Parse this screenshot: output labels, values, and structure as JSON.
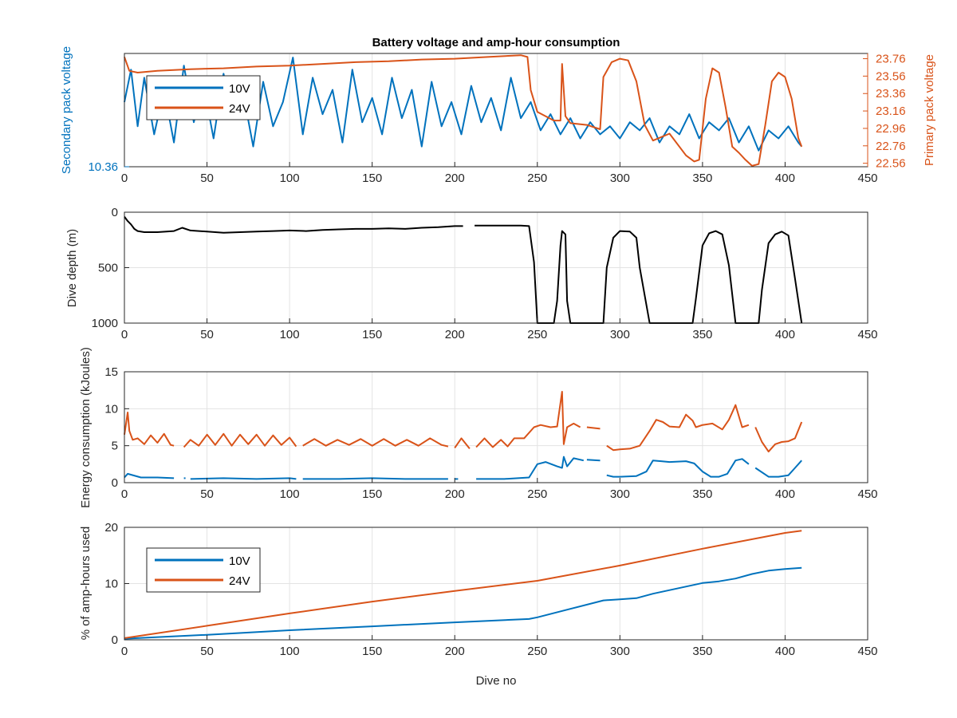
{
  "chart_data": [
    {
      "type": "line",
      "title": "Battery voltage and amp-hour consumption",
      "xlim": [
        0,
        450
      ],
      "xticks": [
        "0",
        "50",
        "100",
        "150",
        "200",
        "250",
        "300",
        "350",
        "400",
        "450"
      ],
      "ylabel_left": "Secondary pack voltage",
      "ylabel_right": "Primary pack voltage",
      "left_tick_labels": [
        "10.36"
      ],
      "right_tick_labels": [
        "23.76",
        "23.56",
        "23.36",
        "23.16",
        "22.96",
        "22.76",
        "22.56"
      ],
      "ylim_left": [
        10.36,
        10.64
      ],
      "ylim_right": [
        22.52,
        23.82
      ],
      "grid": true,
      "legend": {
        "placement": "top-left",
        "entries": [
          "10V",
          "24V"
        ]
      },
      "colors": {
        "s10": "#0072BD",
        "s24": "#D95319"
      },
      "series": [
        {
          "name": "10V",
          "axis": "left",
          "x": [
            0,
            4,
            8,
            12,
            18,
            24,
            30,
            36,
            42,
            48,
            54,
            60,
            66,
            72,
            78,
            84,
            90,
            96,
            102,
            108,
            114,
            120,
            126,
            132,
            138,
            144,
            150,
            156,
            162,
            168,
            174,
            180,
            186,
            192,
            198,
            204,
            210,
            216,
            222,
            228,
            234,
            240,
            246,
            252,
            258,
            264,
            270,
            276,
            282,
            288,
            294,
            300,
            306,
            312,
            318,
            324,
            330,
            336,
            342,
            348,
            354,
            360,
            366,
            372,
            378,
            384,
            390,
            396,
            402,
            408,
            410
          ],
          "y": [
            10.52,
            10.6,
            10.46,
            10.58,
            10.44,
            10.55,
            10.42,
            10.61,
            10.47,
            10.56,
            10.43,
            10.59,
            10.48,
            10.54,
            10.41,
            10.57,
            10.46,
            10.52,
            10.63,
            10.44,
            10.58,
            10.49,
            10.55,
            10.42,
            10.6,
            10.47,
            10.53,
            10.44,
            10.58,
            10.48,
            10.55,
            10.41,
            10.57,
            10.46,
            10.52,
            10.44,
            10.56,
            10.47,
            10.53,
            10.45,
            10.58,
            10.48,
            10.52,
            10.45,
            10.49,
            10.44,
            10.48,
            10.43,
            10.47,
            10.44,
            10.46,
            10.43,
            10.47,
            10.45,
            10.48,
            10.42,
            10.46,
            10.44,
            10.49,
            10.43,
            10.47,
            10.45,
            10.48,
            10.42,
            10.46,
            10.4,
            10.45,
            10.43,
            10.46,
            10.42,
            10.41
          ]
        },
        {
          "name": "24V",
          "axis": "right",
          "x": [
            0,
            3,
            8,
            20,
            40,
            60,
            80,
            100,
            120,
            140,
            160,
            180,
            200,
            220,
            240,
            244,
            246,
            250,
            260,
            264,
            265,
            267,
            270,
            280,
            288,
            290,
            295,
            300,
            305,
            310,
            315,
            320,
            330,
            340,
            345,
            348,
            352,
            356,
            360,
            364,
            368,
            372,
            376,
            380,
            384,
            388,
            392,
            396,
            400,
            404,
            408,
            410
          ],
          "y": [
            23.78,
            23.62,
            23.6,
            23.62,
            23.64,
            23.65,
            23.67,
            23.68,
            23.7,
            23.72,
            23.73,
            23.75,
            23.76,
            23.78,
            23.8,
            23.78,
            23.4,
            23.15,
            23.05,
            23.05,
            23.7,
            23.1,
            23.02,
            23.0,
            22.95,
            23.55,
            23.72,
            23.76,
            23.74,
            23.5,
            23.0,
            22.82,
            22.9,
            22.65,
            22.58,
            22.6,
            23.3,
            23.65,
            23.6,
            23.2,
            22.75,
            22.68,
            22.6,
            22.53,
            22.55,
            23.0,
            23.5,
            23.6,
            23.55,
            23.3,
            22.85,
            22.75
          ]
        }
      ]
    },
    {
      "type": "line",
      "title": "",
      "xlim": [
        0,
        450
      ],
      "xticks": [
        "0",
        "50",
        "100",
        "150",
        "200",
        "250",
        "300",
        "350",
        "400",
        "450"
      ],
      "ylabel": "Dive depth (m)",
      "yticks": [
        "0",
        "500",
        "1000"
      ],
      "ylim": [
        0,
        1000
      ],
      "y_reversed": true,
      "grid": true,
      "color": "#000000",
      "series": [
        {
          "segments": [
            {
              "x": [
                0,
                2,
                4,
                6,
                8,
                12,
                20,
                30,
                35,
                40,
                50,
                60,
                70,
                80,
                90,
                100,
                110,
                120,
                130,
                140,
                150,
                160,
                170,
                180,
                190,
                200,
                205
              ],
              "y": [
                40,
                80,
                110,
                150,
                170,
                180,
                180,
                170,
                140,
                165,
                175,
                185,
                180,
                175,
                170,
                165,
                170,
                160,
                155,
                150,
                150,
                145,
                150,
                140,
                135,
                125,
                125
              ]
            },
            {
              "x": [
                212,
                220,
                230,
                240,
                245,
                248,
                250,
                260,
                262,
                264,
                265,
                267,
                268,
                270,
                275,
                285,
                290,
                292,
                296,
                300,
                306,
                310,
                312,
                318,
                330,
                340,
                344,
                346,
                350,
                354,
                358,
                362,
                366,
                370,
                374,
                380,
                384,
                386,
                390,
                394,
                398,
                402,
                406,
                410
              ],
              "y": [
                120,
                120,
                120,
                120,
                125,
                450,
                1000,
                1000,
                800,
                300,
                170,
                200,
                800,
                1000,
                1000,
                1000,
                1000,
                500,
                230,
                170,
                175,
                230,
                500,
                1000,
                1000,
                1000,
                1000,
                780,
                300,
                190,
                170,
                200,
                480,
                1000,
                1000,
                1000,
                1000,
                700,
                280,
                200,
                175,
                210,
                600,
                1000
              ]
            }
          ]
        }
      ]
    },
    {
      "type": "line",
      "title": "",
      "xlim": [
        0,
        450
      ],
      "xticks": [
        "0",
        "50",
        "100",
        "150",
        "200",
        "250",
        "300",
        "350",
        "400",
        "450"
      ],
      "ylabel": "Energy consumption (kJoules)",
      "yticks": [
        "0",
        "5",
        "10",
        "15"
      ],
      "ylim": [
        0,
        15
      ],
      "grid": true,
      "series": [
        {
          "name": "24V",
          "color": "#D95319",
          "segments": [
            {
              "x": [
                0,
                2,
                3,
                5,
                8,
                12,
                16,
                20,
                24,
                28,
                30
              ],
              "y": [
                6.5,
                9.5,
                7.0,
                5.8,
                6.0,
                5.2,
                6.4,
                5.4,
                6.6,
                5.1,
                5.0
              ]
            },
            {
              "x": [
                36,
                40,
                45,
                50,
                55,
                60,
                65,
                70,
                75,
                80,
                85,
                90,
                95,
                100,
                104
              ],
              "y": [
                4.8,
                5.8,
                5.0,
                6.5,
                5.1,
                6.6,
                5.0,
                6.5,
                5.2,
                6.5,
                5.0,
                6.4,
                5.1,
                6.1,
                4.9
              ]
            },
            {
              "x": [
                108,
                115,
                122,
                129,
                136,
                143,
                150,
                157,
                164,
                171,
                178,
                185,
                192,
                196
              ],
              "y": [
                5.0,
                5.9,
                5.0,
                5.8,
                5.1,
                5.9,
                5.0,
                5.9,
                5.0,
                5.8,
                5.0,
                6.0,
                5.1,
                4.9
              ]
            },
            {
              "x": [
                200,
                204,
                209
              ],
              "y": [
                4.7,
                6.0,
                4.6
              ]
            },
            {
              "x": [
                213,
                218,
                223,
                228,
                232,
                236,
                242,
                248,
                252,
                258,
                262,
                265,
                266,
                268,
                272,
                276
              ],
              "y": [
                4.8,
                6.0,
                4.8,
                5.8,
                4.9,
                6.0,
                6.0,
                7.5,
                7.8,
                7.5,
                7.6,
                12.3,
                5.2,
                7.5,
                8.0,
                7.5
              ]
            },
            {
              "x": [
                280,
                288
              ],
              "y": [
                7.5,
                7.3
              ]
            },
            {
              "x": [
                292,
                296,
                300,
                306,
                312,
                318,
                322,
                326,
                330,
                336,
                340,
                344,
                346,
                350,
                356,
                362,
                366,
                370,
                374,
                378
              ],
              "y": [
                5.0,
                4.4,
                4.5,
                4.6,
                5.0,
                7.0,
                8.5,
                8.2,
                7.6,
                7.5,
                9.2,
                8.4,
                7.5,
                7.8,
                8.0,
                7.2,
                8.5,
                10.5,
                7.5,
                7.8
              ]
            },
            {
              "x": [
                382,
                386,
                390,
                394,
                398,
                402,
                406,
                410
              ],
              "y": [
                7.5,
                5.5,
                4.2,
                5.2,
                5.5,
                5.6,
                6.0,
                8.2
              ]
            }
          ]
        },
        {
          "name": "10V",
          "color": "#0072BD",
          "segments": [
            {
              "x": [
                0,
                2,
                10,
                20,
                30
              ],
              "y": [
                0.7,
                1.2,
                0.7,
                0.7,
                0.6
              ]
            },
            {
              "x": [
                36,
                37
              ],
              "y": [
                0.6,
                0.6
              ]
            },
            {
              "x": [
                40,
                60,
                80,
                100,
                104
              ],
              "y": [
                0.5,
                0.6,
                0.5,
                0.6,
                0.5
              ]
            },
            {
              "x": [
                108,
                130,
                150,
                170,
                196
              ],
              "y": [
                0.5,
                0.5,
                0.6,
                0.5,
                0.5
              ]
            },
            {
              "x": [
                200,
                202
              ],
              "y": [
                0.5,
                0.5
              ]
            },
            {
              "x": [
                213,
                230,
                245,
                250,
                255,
                262,
                265,
                266,
                268,
                272,
                278
              ],
              "y": [
                0.5,
                0.5,
                0.7,
                2.5,
                2.8,
                2.2,
                2.0,
                3.5,
                2.2,
                3.3,
                3.0
              ]
            },
            {
              "x": [
                280,
                288
              ],
              "y": [
                3.1,
                3.0
              ]
            },
            {
              "x": [
                292,
                296,
                300,
                310,
                316,
                320,
                325,
                330,
                340,
                345,
                350,
                355,
                360,
                365,
                370,
                374,
                378
              ],
              "y": [
                1.0,
                0.8,
                0.8,
                0.9,
                1.5,
                3.0,
                2.9,
                2.8,
                2.9,
                2.6,
                1.5,
                0.8,
                0.8,
                1.2,
                3.0,
                3.2,
                2.5
              ]
            },
            {
              "x": [
                382,
                390,
                396,
                402,
                406,
                410
              ],
              "y": [
                2.0,
                0.8,
                0.8,
                1.0,
                2.0,
                3.0
              ]
            }
          ]
        }
      ]
    },
    {
      "type": "line",
      "title": "",
      "xlim": [
        0,
        450
      ],
      "xticks": [
        "0",
        "50",
        "100",
        "150",
        "200",
        "250",
        "300",
        "350",
        "400",
        "450"
      ],
      "xlabel": "Dive no",
      "ylabel": "% of amp-hours used",
      "yticks": [
        "0",
        "10",
        "20"
      ],
      "ylim": [
        0,
        20
      ],
      "grid": true,
      "legend": {
        "placement": "top-left",
        "entries": [
          "10V",
          "24V"
        ]
      },
      "series": [
        {
          "name": "10V",
          "color": "#0072BD",
          "x": [
            0,
            50,
            100,
            150,
            200,
            245,
            250,
            270,
            290,
            300,
            310,
            320,
            350,
            360,
            370,
            380,
            390,
            400,
            410
          ],
          "y": [
            0.2,
            0.9,
            1.7,
            2.4,
            3.1,
            3.7,
            4.0,
            5.5,
            7.0,
            7.2,
            7.4,
            8.2,
            10.1,
            10.4,
            10.9,
            11.7,
            12.3,
            12.6,
            12.8
          ]
        },
        {
          "name": "24V",
          "color": "#D95319",
          "x": [
            0,
            50,
            100,
            150,
            200,
            250,
            300,
            350,
            400,
            410
          ],
          "y": [
            0.3,
            2.5,
            4.7,
            6.8,
            8.7,
            10.5,
            13.2,
            16.2,
            19.0,
            19.4
          ]
        }
      ]
    }
  ]
}
